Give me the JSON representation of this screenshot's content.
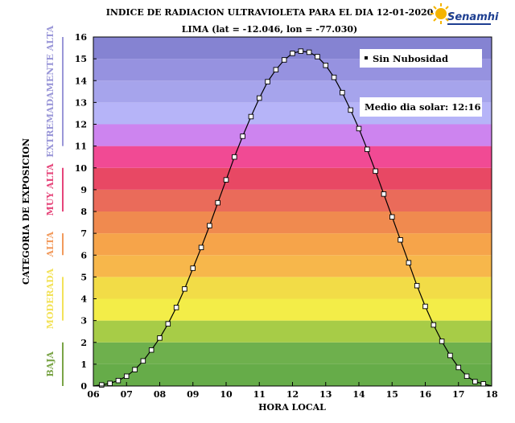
{
  "title": "INDICE DE RADIACION ULTRAVIOLETA PARA EL DIA 12-01-2020",
  "subtitle": "LIMA (lat = -12.046, lon = -77.030)",
  "logo": {
    "text": "Senamhi",
    "sun_color": "#f5b400",
    "text_color": "#1e3f91"
  },
  "chart_data": {
    "type": "line",
    "xlabel": "HORA LOCAL",
    "ylabel": "CATEGORIA DE EXPOSICION",
    "xlim": [
      6,
      18
    ],
    "ylim": [
      0,
      16
    ],
    "x_tick_labels": [
      "06",
      "07",
      "08",
      "09",
      "10",
      "11",
      "12",
      "13",
      "14",
      "15",
      "16",
      "17",
      "18"
    ],
    "y_tick_labels": [
      "0",
      "1",
      "2",
      "3",
      "4",
      "5",
      "6",
      "7",
      "8",
      "9",
      "10",
      "11",
      "12",
      "13",
      "14",
      "15",
      "16"
    ],
    "grid": false,
    "legend_position": "top-right",
    "series": [
      {
        "name": "Sin Nubosidad",
        "marker": "square",
        "x": [
          6.25,
          6.5,
          6.75,
          7.0,
          7.25,
          7.5,
          7.75,
          8.0,
          8.25,
          8.5,
          8.75,
          9.0,
          9.25,
          9.5,
          9.75,
          10.0,
          10.25,
          10.5,
          10.75,
          11.0,
          11.25,
          11.5,
          11.75,
          12.0,
          12.25,
          12.5,
          12.75,
          13.0,
          13.25,
          13.5,
          13.75,
          14.0,
          14.25,
          14.5,
          14.75,
          15.0,
          15.25,
          15.5,
          15.75,
          16.0,
          16.25,
          16.5,
          16.75,
          17.0,
          17.25,
          17.5,
          17.75
        ],
        "values": [
          0.05,
          0.12,
          0.25,
          0.45,
          0.75,
          1.15,
          1.65,
          2.2,
          2.85,
          3.6,
          4.45,
          5.4,
          6.35,
          7.35,
          8.4,
          9.45,
          10.5,
          11.45,
          12.35,
          13.2,
          13.95,
          14.5,
          14.95,
          15.25,
          15.35,
          15.3,
          15.1,
          14.7,
          14.15,
          13.45,
          12.65,
          11.8,
          10.85,
          9.85,
          8.8,
          7.75,
          6.7,
          5.65,
          4.6,
          3.65,
          2.8,
          2.05,
          1.4,
          0.85,
          0.45,
          0.2,
          0.1
        ]
      }
    ],
    "annotations": [
      "Medio dia solar: 12:16"
    ],
    "categories": [
      {
        "label": "Baja",
        "range": [
          0,
          2
        ],
        "color": "#7aa447"
      },
      {
        "label": "Moderada",
        "range": [
          3,
          5
        ],
        "color": "#f3e25a"
      },
      {
        "label": "Alta",
        "range": [
          6,
          7
        ],
        "color": "#f29a5c"
      },
      {
        "label": "Muy Alta",
        "range": [
          8,
          10
        ],
        "color": "#e6457a"
      },
      {
        "label": "Extremadamente Alta",
        "range": [
          11,
          16
        ],
        "color": "#9a97d8"
      }
    ],
    "bands": [
      {
        "from": 0,
        "to": 1,
        "color": "#66ac49"
      },
      {
        "from": 1,
        "to": 2,
        "color": "#6eb04d"
      },
      {
        "from": 2,
        "to": 3,
        "color": "#a7cc47"
      },
      {
        "from": 3,
        "to": 4,
        "color": "#f3ed48"
      },
      {
        "from": 4,
        "to": 5,
        "color": "#f2dc47"
      },
      {
        "from": 5,
        "to": 6,
        "color": "#f7b74b"
      },
      {
        "from": 6,
        "to": 7,
        "color": "#f6a44a"
      },
      {
        "from": 7,
        "to": 8,
        "color": "#f08a4f"
      },
      {
        "from": 8,
        "to": 9,
        "color": "#ea6b5a"
      },
      {
        "from": 9,
        "to": 10,
        "color": "#e84864"
      },
      {
        "from": 10,
        "to": 11,
        "color": "#f14a94"
      },
      {
        "from": 11,
        "to": 12,
        "color": "#cd84ef"
      },
      {
        "from": 12,
        "to": 13,
        "color": "#b6b4f8"
      },
      {
        "from": 13,
        "to": 14,
        "color": "#a6a4ec"
      },
      {
        "from": 14,
        "to": 15,
        "color": "#9692e0"
      },
      {
        "from": 15,
        "to": 16,
        "color": "#8583d2"
      }
    ]
  }
}
